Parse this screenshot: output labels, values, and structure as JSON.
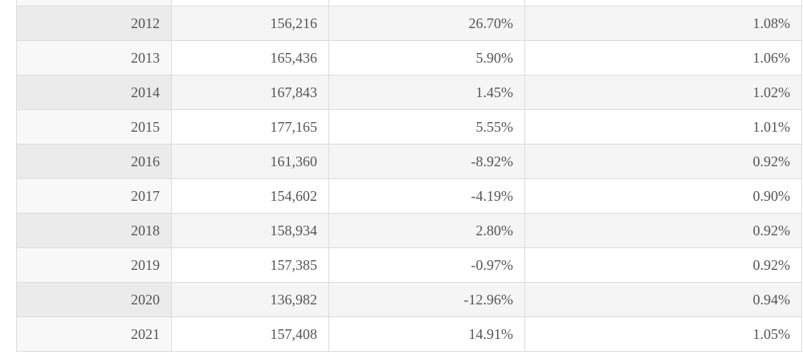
{
  "table": {
    "rows": [
      {
        "year": "2012",
        "value": "156,216",
        "change": "26.70%",
        "share": "1.08%"
      },
      {
        "year": "2013",
        "value": "165,436",
        "change": "5.90%",
        "share": "1.06%"
      },
      {
        "year": "2014",
        "value": "167,843",
        "change": "1.45%",
        "share": "1.02%"
      },
      {
        "year": "2015",
        "value": "177,165",
        "change": "5.55%",
        "share": "1.01%"
      },
      {
        "year": "2016",
        "value": "161,360",
        "change": "-8.92%",
        "share": "0.92%"
      },
      {
        "year": "2017",
        "value": "154,602",
        "change": "-4.19%",
        "share": "0.90%"
      },
      {
        "year": "2018",
        "value": "158,934",
        "change": "2.80%",
        "share": "0.92%"
      },
      {
        "year": "2019",
        "value": "157,385",
        "change": "-0.97%",
        "share": "0.92%"
      },
      {
        "year": "2020",
        "value": "136,982",
        "change": "-12.96%",
        "share": "0.94%"
      },
      {
        "year": "2021",
        "value": "157,408",
        "change": "14.91%",
        "share": "1.05%"
      }
    ]
  }
}
